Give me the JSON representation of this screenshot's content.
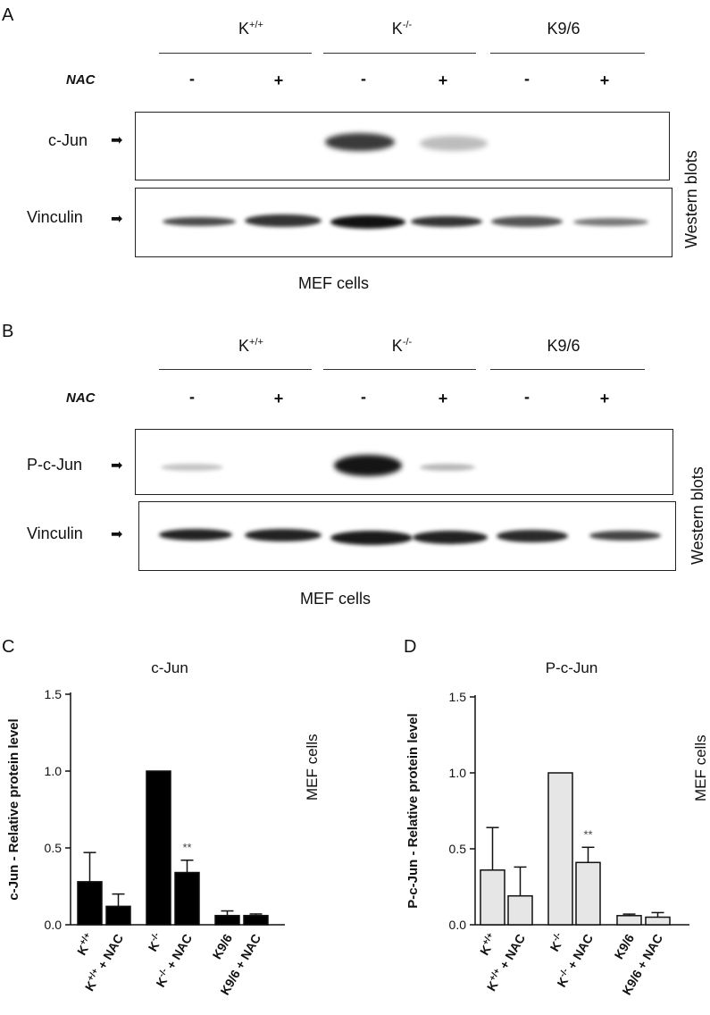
{
  "panelA": {
    "label": "A",
    "groups": [
      "K",
      "K",
      "K9/6"
    ],
    "group_sups": [
      "+/+",
      "-/-",
      ""
    ],
    "nac_label": "NAC",
    "signs": [
      "-",
      "+",
      "-",
      "+",
      "-",
      "+"
    ],
    "blots": [
      "c-Jun",
      "Vinculin"
    ],
    "arrow": "➡",
    "side_label": "Western blots",
    "footer": "MEF cells"
  },
  "panelB": {
    "label": "B",
    "groups": [
      "K",
      "K",
      "K9/6"
    ],
    "group_sups": [
      "+/+",
      "-/-",
      ""
    ],
    "nac_label": "NAC",
    "signs": [
      "-",
      "+",
      "-",
      "+",
      "-",
      "+"
    ],
    "blots": [
      "P-c-Jun",
      "Vinculin"
    ],
    "arrow": "➡",
    "side_label": "Western blots",
    "footer": "MEF cells"
  },
  "chart_data": [
    {
      "panel": "C",
      "type": "bar",
      "title": "c-Jun",
      "ylabel": "c-Jun - Relative protein level",
      "side_label": "MEF cells",
      "ylim": [
        0,
        1.5
      ],
      "yticks": [
        "0.0",
        "0.5",
        "1.0",
        "1.5"
      ],
      "categories": [
        "K+/+",
        "K+/+ + NAC",
        "K-/-",
        "K-/- + NAC",
        "K9/6",
        "K9/6 + NAC"
      ],
      "values": [
        0.28,
        0.12,
        1.0,
        0.34,
        0.06,
        0.06
      ],
      "errors": [
        0.19,
        0.08,
        0.0,
        0.08,
        0.03,
        0.01
      ],
      "annotation": "**",
      "annotation_index": 3,
      "bar_color": "#000000"
    },
    {
      "panel": "D",
      "type": "bar",
      "title": "P-c-Jun",
      "ylabel": "P-c-Jun - Relative protein level",
      "side_label": "MEF cells",
      "ylim": [
        0,
        1.5
      ],
      "yticks": [
        "0.0",
        "0.5",
        "1.0",
        "1.5"
      ],
      "categories": [
        "K+/+",
        "K+/+ + NAC",
        "K-/-",
        "K-/- + NAC",
        "K9/6",
        "K9/6 + NAC"
      ],
      "values": [
        0.36,
        0.19,
        1.0,
        0.41,
        0.06,
        0.05
      ],
      "errors": [
        0.28,
        0.19,
        0.0,
        0.1,
        0.01,
        0.03
      ],
      "annotation": "**",
      "annotation_index": 3,
      "bar_color": "#e6e6e6"
    }
  ]
}
